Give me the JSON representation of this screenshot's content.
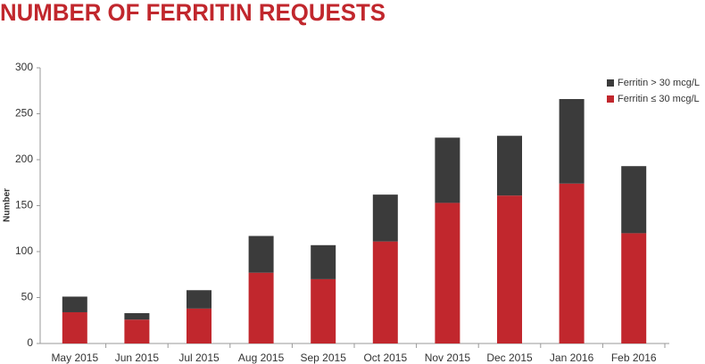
{
  "chart_data": {
    "type": "stacked_bar",
    "title": "NUMBER OF FERRITIN REQUESTS",
    "y_label": "Number",
    "categories": [
      "May 2015",
      "Jun 2015",
      "Jul 2015",
      "Aug 2015",
      "Sep 2015",
      "Oct 2015",
      "Nov 2015",
      "Dec 2015",
      "Jan 2016",
      "Feb 2016"
    ],
    "series": [
      {
        "name": "Ferritin > 30 mcg/L",
        "color": "#3b3b3b",
        "values": [
          17,
          7,
          20,
          40,
          37,
          51,
          71,
          65,
          92,
          73
        ]
      },
      {
        "name": "Ferritin ≤ 30 mcg/L",
        "color": "#c1272d",
        "values": [
          34,
          26,
          38,
          77,
          70,
          111,
          153,
          161,
          174,
          120
        ]
      }
    ],
    "ylim": [
      0,
      300
    ],
    "yticks": [
      0,
      50,
      100,
      150,
      200,
      250,
      300
    ],
    "grid": false,
    "legend": "top-right"
  }
}
